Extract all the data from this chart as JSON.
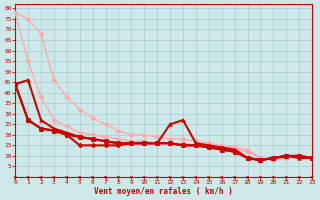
{
  "background_color": "#cce8e8",
  "grid_color": "#aacccc",
  "xlabel": "Vent moyen/en rafales ( km/h )",
  "xlabel_color": "#cc0000",
  "tick_color": "#cc0000",
  "xlim": [
    0,
    23
  ],
  "ylim": [
    0,
    82
  ],
  "yticks": [
    5,
    10,
    15,
    20,
    25,
    30,
    35,
    40,
    45,
    50,
    55,
    60,
    65,
    70,
    75,
    80
  ],
  "xticks": [
    0,
    1,
    2,
    3,
    4,
    5,
    6,
    7,
    8,
    9,
    10,
    11,
    12,
    13,
    14,
    15,
    16,
    17,
    18,
    19,
    20,
    21,
    22,
    23
  ],
  "series": [
    {
      "x": [
        0,
        1,
        2,
        3,
        4,
        5,
        6,
        7,
        8,
        9,
        10,
        11,
        12,
        13,
        14,
        15,
        16,
        17,
        18,
        19,
        20,
        21,
        22,
        23
      ],
      "y": [
        78,
        75,
        68,
        46,
        38,
        32,
        28,
        25,
        22,
        20,
        20,
        19,
        18,
        18,
        17,
        16,
        15,
        14,
        13,
        9,
        8,
        9,
        10,
        9
      ],
      "color": "#ffaaaa",
      "lw": 1.0,
      "marker": "D",
      "ms": 2.5
    },
    {
      "x": [
        0,
        1,
        2,
        3,
        4,
        5,
        6,
        7,
        8,
        9,
        10,
        11,
        12,
        13,
        14,
        15,
        16,
        17,
        18,
        19,
        20,
        21,
        22,
        23
      ],
      "y": [
        78,
        55,
        38,
        27,
        24,
        21,
        20,
        19,
        18,
        17,
        17,
        16,
        16,
        16,
        15,
        15,
        14,
        13,
        12,
        9,
        8,
        9,
        10,
        9
      ],
      "color": "#ffaaaa",
      "lw": 1.0,
      "marker": "D",
      "ms": 2.5
    },
    {
      "x": [
        0,
        1,
        2,
        3,
        4,
        5,
        6,
        7,
        8,
        9,
        10,
        11,
        12,
        13,
        14,
        15,
        16,
        17,
        18,
        19,
        20,
        21,
        22,
        23
      ],
      "y": [
        44,
        46,
        27,
        23,
        21,
        19,
        18,
        17,
        16,
        16,
        16,
        16,
        25,
        27,
        16,
        15,
        14,
        13,
        9,
        8,
        9,
        10,
        9,
        9
      ],
      "color": "#cc0000",
      "lw": 1.5,
      "marker": "^",
      "ms": 2.5
    },
    {
      "x": [
        0,
        1,
        2,
        3,
        4,
        5,
        6,
        7,
        8,
        9,
        10,
        11,
        12,
        13,
        14,
        15,
        16,
        17,
        18,
        19,
        20,
        21,
        22,
        23
      ],
      "y": [
        44,
        27,
        23,
        22,
        20,
        19,
        18,
        17,
        16,
        16,
        16,
        16,
        16,
        15,
        15,
        14,
        13,
        12,
        9,
        8,
        9,
        10,
        10,
        9
      ],
      "color": "#cc0000",
      "lw": 1.5,
      "marker": "s",
      "ms": 2.5
    },
    {
      "x": [
        0,
        1,
        2,
        3,
        4,
        5,
        6,
        7,
        8,
        9,
        10,
        11,
        12,
        13,
        14,
        15,
        16,
        17,
        18,
        19,
        20,
        21,
        22,
        23
      ],
      "y": [
        44,
        27,
        23,
        22,
        20,
        15,
        15,
        15,
        15,
        16,
        16,
        16,
        16,
        15,
        15,
        14,
        13,
        12,
        9,
        8,
        9,
        10,
        10,
        9
      ],
      "color": "#cc0000",
      "lw": 1.5,
      "marker": "D",
      "ms": 2.5
    }
  ]
}
